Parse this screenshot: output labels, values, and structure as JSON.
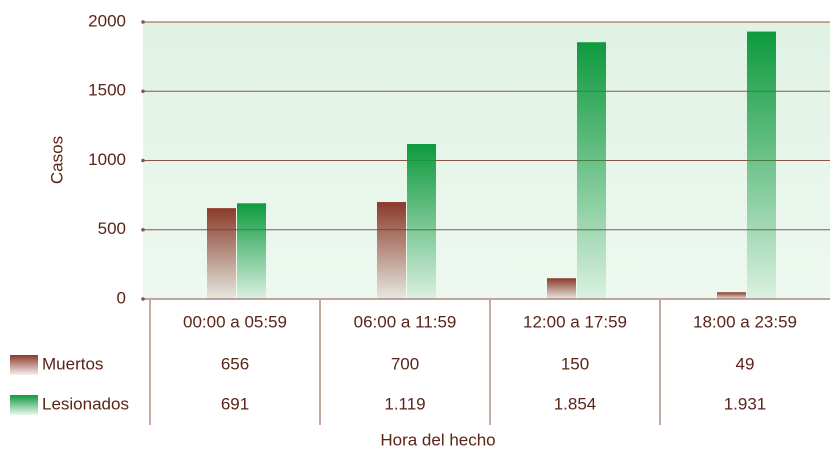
{
  "chart_data": {
    "type": "bar",
    "x_label": "Hora del hecho",
    "y_label": "Casos",
    "categories": [
      "00:00 a 05:59",
      "06:00 a 11:59",
      "12:00 a 17:59",
      "18:00 a 23:59"
    ],
    "series": [
      {
        "name": "Muertos",
        "color": "#8b3a2a",
        "values": [
          656,
          700,
          150,
          49
        ]
      },
      {
        "name": "Lesionados",
        "color": "#0e9a3e",
        "values": [
          691,
          1119,
          1854,
          1931
        ],
        "value_labels": [
          "691",
          "1.119",
          "1.854",
          "1.931"
        ]
      }
    ],
    "ylim": [
      0,
      2000
    ],
    "yticks": [
      0,
      500,
      1000,
      1500,
      2000
    ],
    "grid": true
  }
}
